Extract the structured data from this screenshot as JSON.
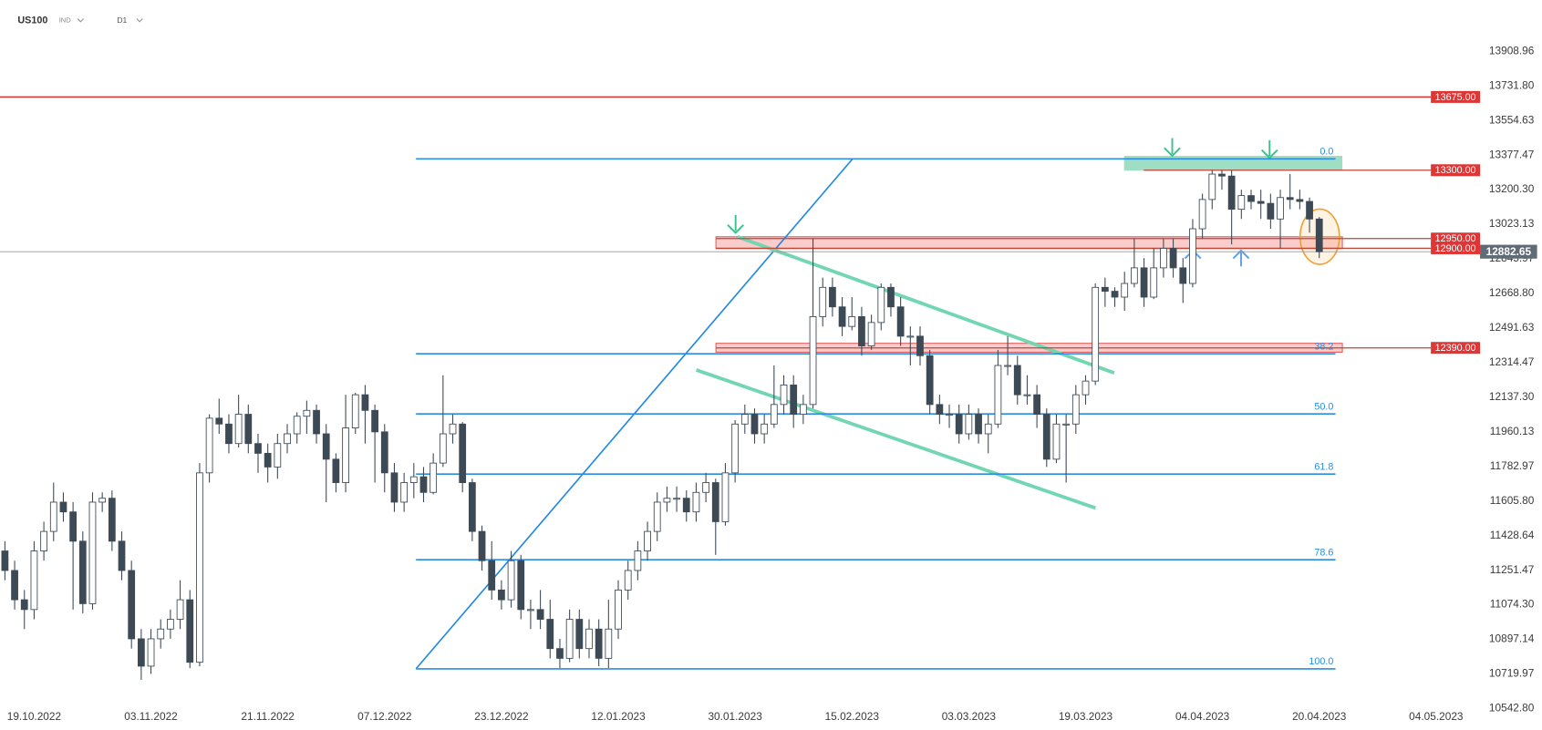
{
  "header": {
    "symbol": "US100",
    "class": "IND",
    "timeframe": "D1"
  },
  "chart_data": {
    "type": "candlestick",
    "categories": [
      null,
      null,
      null,
      "19.10.2022",
      null,
      null,
      null,
      null,
      null,
      null,
      null,
      null,
      null,
      null,
      null,
      "03.11.2022",
      null,
      null,
      null,
      null,
      null,
      null,
      null,
      null,
      null,
      null,
      null,
      "21.11.2022",
      null,
      null,
      null,
      null,
      null,
      null,
      null,
      null,
      null,
      null,
      null,
      "07.12.2022",
      null,
      null,
      null,
      null,
      null,
      null,
      null,
      null,
      null,
      null,
      null,
      "23.12.2022",
      null,
      null,
      null,
      null,
      null,
      null,
      null,
      null,
      null,
      null,
      null,
      "12.01.2023",
      null,
      null,
      null,
      null,
      null,
      null,
      null,
      null,
      null,
      null,
      null,
      "30.01.2023",
      null,
      null,
      null,
      null,
      null,
      null,
      null,
      null,
      null,
      null,
      null,
      "15.02.2023",
      null,
      null,
      null,
      null,
      null,
      null,
      null,
      null,
      null,
      null,
      null,
      "03.03.2023",
      null,
      null,
      null,
      null,
      null,
      null,
      null,
      null,
      null,
      null,
      null,
      "19.03.2023",
      null,
      null,
      null,
      null,
      null,
      null,
      null,
      null,
      null,
      null,
      null,
      "04.04.2023",
      null,
      null,
      null,
      null,
      null,
      null,
      null,
      null,
      null,
      null,
      null,
      "20.04.2023",
      null,
      null,
      null,
      null,
      null,
      null,
      null,
      null,
      null,
      null,
      null,
      "04.05.2023"
    ],
    "open": [
      11350,
      11250,
      11100,
      11050,
      11350,
      11450,
      11600,
      11550,
      11400,
      11080,
      11600,
      11620,
      11400,
      11250,
      10900,
      10760,
      10900,
      10950,
      11000,
      11100,
      10780,
      11750,
      12030,
      12000,
      11900,
      12050,
      11900,
      11850,
      11780,
      11900,
      11950,
      12040,
      12070,
      11950,
      11820,
      11700,
      11980,
      12150,
      12070,
      11960,
      11750,
      11600,
      11700,
      11730,
      11650,
      11800,
      11950,
      12000,
      11700,
      11450,
      11300,
      11150,
      11100,
      11300,
      11050,
      11050,
      11000,
      10850,
      10800,
      11000,
      10850,
      10950,
      10800,
      10950,
      11150,
      11250,
      11350,
      11450,
      11600,
      11620,
      11620,
      11550,
      11650,
      11700,
      11500,
      11750,
      12000,
      12050,
      11950,
      12000,
      12100,
      12200,
      12050,
      12100,
      12550,
      12700,
      12600,
      12500,
      12550,
      12400,
      12520,
      12700,
      12600,
      12450,
      12450,
      12350,
      12100,
      12050,
      12050,
      11950,
      12050,
      11950,
      12000,
      12300,
      12300,
      12150,
      12150,
      12050,
      11820,
      12000,
      12000,
      12150,
      12220,
      12700,
      12680,
      12650,
      12720,
      12800,
      12650,
      12800,
      12900,
      12800,
      12720,
      13000,
      13150,
      13280,
      13270,
      13100,
      13170,
      13140,
      13130,
      13050,
      13160,
      13150,
      13140,
      13050,
      null,
      null,
      null,
      null,
      null,
      null,
      null,
      null,
      null,
      null,
      null,
      null
    ],
    "high": [
      11400,
      11300,
      11150,
      11400,
      11500,
      11700,
      11650,
      11600,
      11450,
      11650,
      11650,
      11660,
      11450,
      11300,
      10950,
      10950,
      11000,
      11050,
      11200,
      11150,
      11800,
      12050,
      12130,
      12050,
      12150,
      12100,
      11950,
      11900,
      11950,
      12000,
      12060,
      12120,
      12100,
      12000,
      11850,
      12150,
      12160,
      12200,
      12100,
      12000,
      11800,
      11750,
      11800,
      11780,
      11850,
      12250,
      12050,
      12010,
      11720,
      11480,
      11400,
      11200,
      11350,
      11330,
      11100,
      11150,
      11100,
      10900,
      11050,
      11050,
      11000,
      11000,
      11100,
      11200,
      11300,
      11400,
      11500,
      11650,
      11680,
      11680,
      11660,
      11700,
      11750,
      11720,
      11800,
      12020,
      12100,
      12080,
      12050,
      12300,
      12250,
      12250,
      12150,
      12950,
      12750,
      12750,
      12650,
      12650,
      12600,
      12560,
      12720,
      12720,
      12650,
      12500,
      12500,
      12380,
      12150,
      12100,
      12100,
      12100,
      12080,
      12050,
      12380,
      12450,
      12350,
      12250,
      12200,
      12080,
      12050,
      12050,
      12200,
      12250,
      12720,
      12750,
      12700,
      12780,
      12950,
      12850,
      12900,
      12950,
      12950,
      12850,
      13050,
      13180,
      13300,
      13300,
      13300,
      13200,
      13200,
      13200,
      13180,
      13200,
      13280,
      13200,
      13160,
      13060,
      null,
      null,
      null,
      null,
      null,
      null,
      null,
      null,
      null,
      null,
      null,
      null
    ],
    "low": [
      11200,
      11050,
      10950,
      11000,
      11300,
      11400,
      11500,
      11050,
      11030,
      11050,
      11550,
      11350,
      11200,
      10850,
      10690,
      10720,
      10850,
      10900,
      10950,
      10750,
      10760,
      11700,
      11950,
      11850,
      11880,
      11850,
      11750,
      11700,
      11720,
      11850,
      11900,
      11950,
      11900,
      11600,
      11650,
      11650,
      11950,
      11900,
      11700,
      11650,
      11550,
      11550,
      11620,
      11600,
      11640,
      11780,
      11900,
      11650,
      11400,
      11250,
      11100,
      11050,
      11060,
      11000,
      10950,
      10950,
      10800,
      10750,
      10780,
      10800,
      10800,
      10760,
      10750,
      10900,
      11100,
      11200,
      11300,
      11400,
      11550,
      11550,
      11500,
      11500,
      11600,
      11330,
      11480,
      11700,
      11950,
      11900,
      11900,
      11980,
      12050,
      11980,
      12000,
      12080,
      12500,
      12550,
      12450,
      12480,
      12350,
      12380,
      12480,
      12550,
      12400,
      12300,
      12300,
      12050,
      12000,
      11980,
      11900,
      11920,
      11900,
      11850,
      11980,
      12250,
      12100,
      12100,
      11980,
      11780,
      11800,
      11700,
      11950,
      12100,
      12200,
      12600,
      12600,
      12580,
      12700,
      12600,
      12640,
      12750,
      12750,
      12620,
      12700,
      12950,
      13100,
      13200,
      12920,
      13050,
      13100,
      13050,
      13000,
      12900,
      13100,
      13100,
      12980,
      12850,
      null,
      null,
      null,
      null,
      null,
      null,
      null,
      null,
      null,
      null,
      null,
      null
    ],
    "close": [
      11250,
      11100,
      11050,
      11350,
      11450,
      11600,
      11550,
      11400,
      11080,
      11600,
      11620,
      11400,
      11250,
      10900,
      10760,
      10900,
      10950,
      11000,
      11100,
      10780,
      11750,
      12030,
      12000,
      11900,
      12050,
      11900,
      11850,
      11780,
      11900,
      11950,
      12040,
      12070,
      11950,
      11820,
      11700,
      11980,
      12150,
      12070,
      11960,
      11750,
      11600,
      11700,
      11730,
      11650,
      11800,
      11950,
      12000,
      11700,
      11450,
      11300,
      11150,
      11100,
      11300,
      11050,
      11050,
      11000,
      10850,
      10800,
      11000,
      10850,
      10950,
      10800,
      10950,
      11150,
      11250,
      11350,
      11450,
      11600,
      11620,
      11620,
      11550,
      11650,
      11700,
      11500,
      11750,
      12000,
      12050,
      11950,
      12000,
      12100,
      12200,
      12050,
      12100,
      12550,
      12700,
      12600,
      12500,
      12550,
      12400,
      12520,
      12700,
      12600,
      12450,
      12450,
      12350,
      12100,
      12050,
      12050,
      11950,
      12050,
      11950,
      12000,
      12300,
      12300,
      12150,
      12150,
      12050,
      11820,
      12000,
      12000,
      12150,
      12220,
      12700,
      12680,
      12650,
      12720,
      12800,
      12650,
      12800,
      12900,
      12800,
      12720,
      13000,
      13150,
      13280,
      13270,
      13100,
      13170,
      13140,
      13130,
      13050,
      13160,
      13150,
      13140,
      13050,
      12882.65,
      null,
      null,
      null,
      null,
      null,
      null,
      null,
      null,
      null,
      null,
      null,
      null
    ],
    "ylim": [
      10433.04,
      14171.67
    ],
    "yticks": [
      {
        "value": 13908.96,
        "label": "13908.96"
      },
      {
        "value": 13731.8,
        "label": "13731.80"
      },
      {
        "value": 13554.63,
        "label": "13554.63"
      },
      {
        "value": 13377.47,
        "label": "13377.47"
      },
      {
        "value": 13200.3,
        "label": "13200.30"
      },
      {
        "value": 13023.13,
        "label": "13023.13"
      },
      {
        "value": 12845.97,
        "label": "12845.97"
      },
      {
        "value": 12668.8,
        "label": "12668.80"
      },
      {
        "value": 12491.63,
        "label": "12491.63"
      },
      {
        "value": 12314.47,
        "label": "12314.47"
      },
      {
        "value": 12137.3,
        "label": "12137.30"
      },
      {
        "value": 11960.13,
        "label": "11960.13"
      },
      {
        "value": 11782.97,
        "label": "11782.97"
      },
      {
        "value": 11605.8,
        "label": "11605.80"
      },
      {
        "value": 11428.64,
        "label": "11428.64"
      },
      {
        "value": 11251.47,
        "label": "11251.47"
      },
      {
        "value": 11074.3,
        "label": "11074.30"
      },
      {
        "value": 10897.14,
        "label": "10897.14"
      },
      {
        "value": 10719.97,
        "label": "10719.97"
      },
      {
        "value": 10542.8,
        "label": "10542.80"
      }
    ],
    "levels": [
      {
        "value": 13675,
        "label": "13675.00"
      },
      {
        "value": 13300,
        "label": "13300.00"
      },
      {
        "value": 12950,
        "label": "12950.00"
      },
      {
        "value": 12900,
        "label": "12900.00"
      },
      {
        "value": 12390,
        "label": "12390.00"
      }
    ],
    "last_price": {
      "value": 12882.65,
      "label": "12882.65"
    },
    "fibonacci": [
      {
        "label": "0.0",
        "value": 13358
      },
      {
        "label": "38.2",
        "value": 12360
      },
      {
        "label": "50.0",
        "value": 12052
      },
      {
        "label": "61.8",
        "value": 11744
      },
      {
        "label": "78.6",
        "value": 11305
      },
      {
        "label": "100.0",
        "value": 10746
      }
    ],
    "up_color": "#ffffff",
    "down_color": "#3d4a55",
    "level_color": "#e03535",
    "fib_color": "#2a8de0"
  }
}
